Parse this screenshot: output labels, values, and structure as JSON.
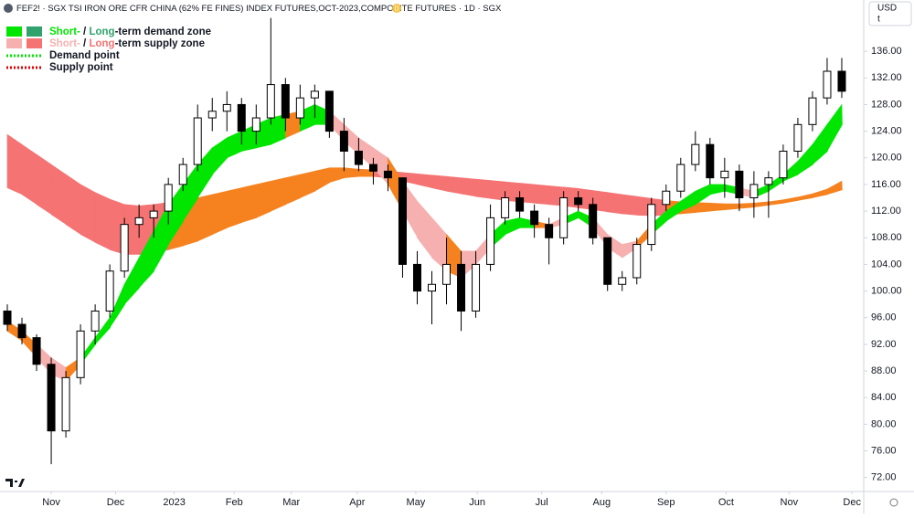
{
  "header": {
    "title": "FEF2! · SGX TSI IRON ORE CFR CHINA (62% FE FINES) INDEX FUTURES,OCT-2023,COMPOSITE FUTURES · 1D · SGX",
    "badge": "D",
    "currency": "USD",
    "unit": "t"
  },
  "legend": [
    {
      "parts": [
        "Short-",
        " / ",
        "Long",
        "-term demand zone"
      ]
    },
    {
      "parts": [
        "Short-",
        " / ",
        "Long",
        "-term supply zone"
      ]
    },
    {
      "label": "Demand point"
    },
    {
      "label": "Supply point"
    }
  ],
  "chart_data": {
    "type": "candlestick",
    "x": [
      0,
      1,
      2,
      3,
      4,
      5,
      6,
      7,
      8,
      9,
      10,
      11,
      12,
      13,
      14,
      15,
      16,
      17,
      18,
      19,
      20,
      21,
      22,
      23,
      24,
      25,
      26,
      27,
      28,
      29,
      30,
      31,
      32,
      33,
      34,
      35,
      36,
      37,
      38,
      39,
      40,
      41,
      42,
      43,
      44,
      45,
      46,
      47,
      48,
      49,
      50,
      51,
      52,
      53,
      54,
      55,
      56,
      57
    ],
    "open": [
      97,
      95,
      93,
      89,
      79,
      87,
      94,
      97,
      103,
      110,
      111,
      112,
      116,
      119,
      126,
      127,
      128,
      124,
      126,
      131,
      126,
      129,
      130,
      124,
      121,
      119,
      118,
      117,
      104,
      100,
      101,
      104,
      97,
      104,
      111,
      114,
      112,
      110,
      108,
      114,
      113,
      108,
      101,
      102,
      107,
      113,
      115,
      119,
      122,
      117,
      118,
      114,
      116,
      117,
      121,
      125,
      129,
      133
    ],
    "high": [
      98,
      96,
      93.5,
      90,
      88,
      95,
      98,
      104,
      111,
      113,
      113,
      117,
      120,
      128,
      129,
      130,
      129,
      128,
      141,
      132,
      131,
      131,
      130,
      126,
      123,
      120,
      119,
      117,
      106,
      103,
      108,
      106,
      106,
      113,
      115,
      115,
      113,
      111,
      115,
      115,
      114,
      108,
      103,
      108,
      114,
      116,
      120,
      124,
      123,
      120,
      119,
      118,
      118,
      122,
      126,
      130,
      135,
      135
    ],
    "low": [
      94,
      92,
      88,
      74,
      78,
      86,
      92,
      96,
      102,
      108,
      108,
      110,
      115,
      118,
      124,
      124,
      122,
      122,
      125,
      124,
      125,
      126,
      123,
      118,
      118,
      116,
      115,
      102,
      98,
      95,
      98,
      94,
      96,
      103,
      110,
      111,
      108,
      104,
      107,
      112,
      107,
      100,
      100,
      101,
      106,
      112,
      114,
      118,
      116,
      114,
      112,
      111,
      111,
      116,
      120,
      124,
      128,
      129
    ],
    "close": [
      95,
      93,
      89,
      79,
      87,
      94,
      97,
      103,
      110,
      111,
      112,
      116,
      119,
      126,
      127,
      128,
      124,
      126,
      131,
      126,
      129,
      130,
      124,
      121,
      119,
      118,
      117,
      104,
      100,
      101,
      104,
      97,
      104,
      111,
      114,
      112,
      110,
      108,
      114,
      113,
      108,
      101,
      102,
      107,
      113,
      115,
      119,
      122,
      117,
      118,
      114,
      116,
      117,
      121,
      125,
      129,
      133,
      130
    ],
    "up_color": "#ffffff",
    "down_color": "#000000",
    "wick_color": "#000000",
    "bands": [
      {
        "name": "Long-term",
        "demand_color": "#2fa36b",
        "supply_color": "#f57373",
        "overlap_color": "#f5821f",
        "upper": [
          123.5,
          122,
          120.5,
          119,
          117.5,
          116,
          114.8,
          113.8,
          113,
          112.8,
          113,
          113.3,
          113.7,
          114,
          114.5,
          115,
          115.5,
          116,
          116.5,
          117,
          117.5,
          118,
          118.5,
          118.5,
          118.3,
          118.2,
          118,
          117.8,
          117.6,
          117.4,
          117.2,
          117,
          116.8,
          116.6,
          116.4,
          116.2,
          116,
          115.8,
          115.6,
          115.4,
          115.1,
          114.8,
          114.5,
          114.2,
          113.9,
          113.6,
          113.4,
          113.3,
          113.2,
          113.1,
          113.1,
          113.2,
          113.4,
          113.7,
          114.1,
          114.6,
          115.3,
          116.5
        ],
        "lower": [
          115.5,
          114.5,
          113,
          111.5,
          110,
          108.5,
          107.3,
          106.2,
          105.5,
          105.5,
          105.8,
          106.2,
          106.8,
          107.5,
          108.5,
          109.5,
          110.3,
          111,
          112,
          113,
          114,
          115,
          116.3,
          117,
          117.2,
          117.2,
          117,
          116.5,
          116,
          115.5,
          115,
          114.6,
          114.2,
          113.9,
          113.6,
          113.4,
          113.2,
          113,
          112.8,
          112.5,
          112.2,
          111.9,
          111.6,
          111.4,
          111.3,
          111.4,
          111.6,
          111.8,
          112,
          112.2,
          112.4,
          112.6,
          112.9,
          113.2,
          113.6,
          114,
          114.5,
          115.2
        ]
      },
      {
        "name": "Short-term",
        "demand_color": "#00e600",
        "supply_color": "#f7b0b0",
        "overlap_color": "#f5821f",
        "upper": [
          95.5,
          94,
          92,
          90,
          88.5,
          90,
          93,
          96,
          101,
          105,
          109,
          113,
          116,
          119,
          121.5,
          123,
          124,
          125,
          126,
          126.5,
          127,
          128,
          127,
          125,
          123,
          121.5,
          120,
          116.5,
          113.5,
          111,
          108.5,
          106,
          106,
          108.5,
          110.5,
          111,
          110.5,
          110,
          111,
          112,
          111,
          108.5,
          107,
          107.5,
          110,
          112,
          113.5,
          115,
          116,
          116,
          115.5,
          115,
          116,
          117.5,
          119.5,
          122,
          125,
          128
        ],
        "lower": [
          94,
          92.5,
          90,
          87.5,
          86.5,
          89,
          92,
          94.5,
          98,
          100.5,
          103,
          107,
          110.5,
          114,
          117.5,
          120,
          121,
          121.5,
          122,
          123,
          124,
          125,
          125,
          122.5,
          120.5,
          118.5,
          116,
          112,
          108,
          105,
          103,
          102,
          104,
          106.5,
          108.5,
          109.5,
          109.5,
          109.5,
          110,
          111,
          109.5,
          106.5,
          105,
          106.5,
          108.5,
          110.5,
          112,
          113,
          114.5,
          115,
          114.5,
          114,
          115,
          116.5,
          117.5,
          119,
          121,
          125
        ]
      }
    ],
    "xlim": [
      -0.5,
      58.5
    ],
    "xticks": [
      {
        "value": 3.0,
        "label": "Nov"
      },
      {
        "value": 7.4,
        "label": "Dec"
      },
      {
        "value": 11.4,
        "label": "2023"
      },
      {
        "value": 15.5,
        "label": "Feb"
      },
      {
        "value": 19.4,
        "label": "Mar"
      },
      {
        "value": 23.9,
        "label": "Apr"
      },
      {
        "value": 27.9,
        "label": "May"
      },
      {
        "value": 32.1,
        "label": "Jun"
      },
      {
        "value": 36.5,
        "label": "Jul"
      },
      {
        "value": 40.6,
        "label": "Aug"
      },
      {
        "value": 45.0,
        "label": "Sep"
      },
      {
        "value": 49.1,
        "label": "Oct"
      },
      {
        "value": 53.4,
        "label": "Nov"
      },
      {
        "value": 57.7,
        "label": "Dec"
      }
    ],
    "ylim": [
      69.9,
      143.7
    ],
    "yticks": [
      {
        "value": 72,
        "label": "72.00"
      },
      {
        "value": 76,
        "label": "76.00"
      },
      {
        "value": 80,
        "label": "80.00"
      },
      {
        "value": 84,
        "label": "84.00"
      },
      {
        "value": 88,
        "label": "88.00"
      },
      {
        "value": 92,
        "label": "92.00"
      },
      {
        "value": 96,
        "label": "96.00"
      },
      {
        "value": 100,
        "label": "100.00"
      },
      {
        "value": 104,
        "label": "104.00"
      },
      {
        "value": 108,
        "label": "108.00"
      },
      {
        "value": 112,
        "label": "112.00"
      },
      {
        "value": 116,
        "label": "116.00"
      },
      {
        "value": 120,
        "label": "120.00"
      },
      {
        "value": 124,
        "label": "124.00"
      },
      {
        "value": 128,
        "label": "128.00"
      },
      {
        "value": 132,
        "label": "132.00"
      },
      {
        "value": 136,
        "label": "136.00"
      }
    ]
  }
}
